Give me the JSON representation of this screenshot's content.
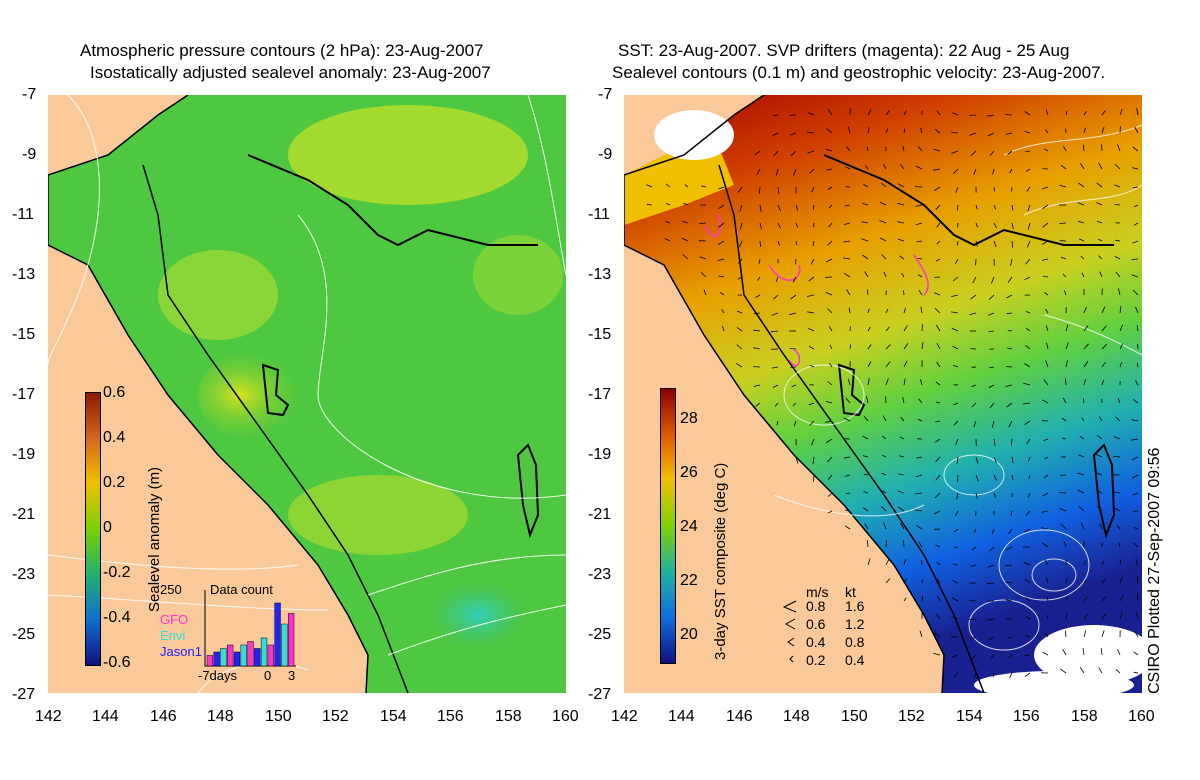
{
  "left_panel": {
    "title_line1": "Atmospheric pressure contours (2 hPa): 23-Aug-2007",
    "title_line2": "Isostatically adjusted sealevel anomaly: 23-Aug-2007",
    "colorbar": {
      "label": "Sealevel anomaly (m)",
      "ticks": [
        "0.6",
        "0.4",
        "0.2",
        "0",
        "-0.2",
        "-0.4",
        "-0.6"
      ],
      "colors": [
        "#8b1a00",
        "#d2691e",
        "#f0c000",
        "#7cd000",
        "#20b070",
        "#1070d0",
        "#101080"
      ]
    },
    "inset": {
      "title": "Data count",
      "ymax": "250",
      "legend": [
        {
          "name": "GFO",
          "color": "#ff33cc"
        },
        {
          "name": "Envi",
          "color": "#33dddd"
        },
        {
          "name": "Jason1",
          "color": "#2222ff"
        }
      ],
      "xticks": [
        "-7days",
        "0",
        "3"
      ],
      "bars": [
        0.15,
        0.2,
        0.25,
        0.3,
        0.2,
        0.3,
        0.35,
        0.25,
        0.4,
        0.3,
        0.9,
        0.6,
        0.75
      ]
    }
  },
  "right_panel": {
    "title_line1": "SST: 23-Aug-2007. SVP drifters (magenta): 22 Aug - 25 Aug",
    "title_line2": "Sealevel contours (0.1 m) and geostrophic velocity: 23-Aug-2007.",
    "colorbar": {
      "label": "3-day SST composite (deg C)",
      "ticks": [
        "28",
        "26",
        "24",
        "22",
        "20"
      ],
      "colors": [
        "#8b0000",
        "#e05a00",
        "#f0c000",
        "#80d000",
        "#20b0a0",
        "#1070e0",
        "#101080"
      ]
    },
    "velocity_legend": {
      "header_ms": "m/s",
      "header_kt": "kt",
      "rows": [
        {
          "ms": "0.8",
          "kt": "1.6"
        },
        {
          "ms": "0.6",
          "kt": "1.2"
        },
        {
          "ms": "0.4",
          "kt": "0.8"
        },
        {
          "ms": "0.2",
          "kt": "0.4"
        }
      ]
    },
    "credit": "CSIRO Plotted 27-Sep-2007 09:56"
  },
  "axes": {
    "lat_ticks": [
      "-7",
      "-9",
      "-11",
      "-13",
      "-15",
      "-17",
      "-19",
      "-21",
      "-23",
      "-25",
      "-27"
    ],
    "lon_ticks": [
      "142",
      "144",
      "146",
      "148",
      "150",
      "152",
      "154",
      "156",
      "158",
      "160"
    ]
  },
  "colors": {
    "land": "#f9c99a",
    "contour": "#ffffff",
    "coast": "#000000"
  }
}
